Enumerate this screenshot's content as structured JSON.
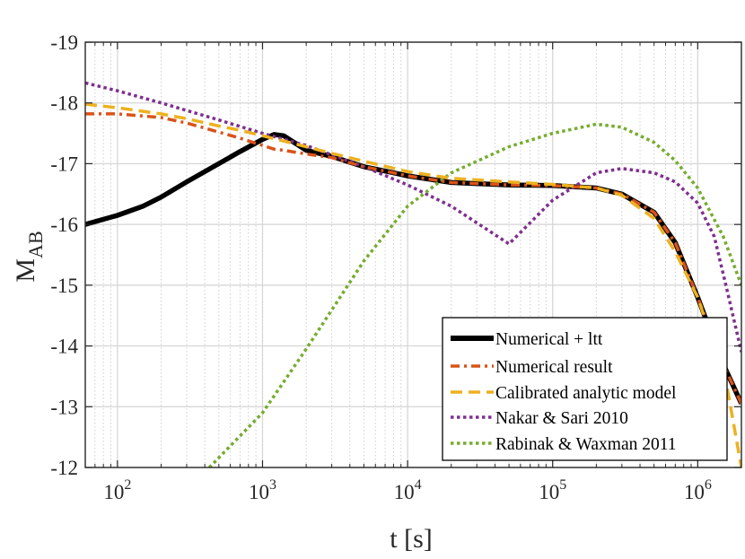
{
  "chart_data": {
    "type": "line",
    "title": "",
    "xlabel": "t [s]",
    "ylabel_main": "M",
    "ylabel_sub": "AB",
    "xscale": "log",
    "xlim": [
      60,
      2000000
    ],
    "ylim": [
      -12,
      -19
    ],
    "y_reversed": true,
    "grid": true,
    "legend_position": "bottom-right",
    "x_ticks": [
      {
        "base": "10",
        "exp": "2",
        "value": 100
      },
      {
        "base": "10",
        "exp": "3",
        "value": 1000
      },
      {
        "base": "10",
        "exp": "4",
        "value": 10000
      },
      {
        "base": "10",
        "exp": "5",
        "value": 100000
      },
      {
        "base": "10",
        "exp": "6",
        "value": 1000000
      }
    ],
    "y_ticks": [
      {
        "label": "-19",
        "value": -19
      },
      {
        "label": "-18",
        "value": -18
      },
      {
        "label": "-17",
        "value": -17
      },
      {
        "label": "-16",
        "value": -16
      },
      {
        "label": "-15",
        "value": -15
      },
      {
        "label": "-14",
        "value": -14
      },
      {
        "label": "-13",
        "value": -13
      },
      {
        "label": "-12",
        "value": -12
      }
    ],
    "series": [
      {
        "name": "Numerical + ltt",
        "color": "#000000",
        "style": "solid",
        "x": [
          60,
          100,
          150,
          200,
          300,
          500,
          700,
          1000,
          1200,
          1400,
          1700,
          2000,
          3000,
          5000,
          8000,
          10000,
          20000,
          50000,
          100000,
          200000,
          300000,
          500000,
          700000,
          1000000,
          1200000,
          1500000,
          2000000
        ],
        "y": [
          -16.0,
          -16.15,
          -16.3,
          -16.45,
          -16.7,
          -17.0,
          -17.2,
          -17.4,
          -17.48,
          -17.46,
          -17.33,
          -17.22,
          -17.12,
          -16.95,
          -16.85,
          -16.8,
          -16.69,
          -16.65,
          -16.64,
          -16.6,
          -16.5,
          -16.2,
          -15.7,
          -14.8,
          -14.3,
          -13.7,
          -13.05
        ]
      },
      {
        "name": "Numerical result",
        "color": "#D95319",
        "style": "dashdot",
        "x": [
          60,
          100,
          200,
          300,
          500,
          700,
          1000,
          1200,
          1400,
          2000,
          3000,
          5000,
          8000,
          10000,
          20000,
          50000,
          100000,
          200000,
          300000,
          500000,
          700000,
          1000000,
          1200000,
          1500000,
          2000000
        ],
        "y": [
          -17.82,
          -17.82,
          -17.76,
          -17.67,
          -17.52,
          -17.42,
          -17.3,
          -17.24,
          -17.22,
          -17.16,
          -17.1,
          -16.95,
          -16.85,
          -16.8,
          -16.69,
          -16.65,
          -16.64,
          -16.6,
          -16.5,
          -16.2,
          -15.7,
          -14.8,
          -14.3,
          -13.7,
          -13.05
        ]
      },
      {
        "name": "Calibrated analytic model",
        "color": "#EDB120",
        "style": "dashed",
        "x": [
          60,
          100,
          200,
          300,
          500,
          700,
          1000,
          2000,
          3000,
          5000,
          10000,
          20000,
          50000,
          100000,
          200000,
          300000,
          500000,
          700000,
          1000000,
          1300000,
          1600000,
          2000000
        ],
        "y": [
          -17.98,
          -17.92,
          -17.82,
          -17.74,
          -17.62,
          -17.55,
          -17.46,
          -17.28,
          -17.17,
          -17.04,
          -16.87,
          -16.76,
          -16.7,
          -16.66,
          -16.6,
          -16.48,
          -16.1,
          -15.55,
          -14.8,
          -14.0,
          -13.3,
          -12.0
        ]
      },
      {
        "name": "Nakar & Sari 2010",
        "color": "#7E2F8E",
        "style": "dotted",
        "x": [
          60,
          100,
          200,
          500,
          1000,
          2000,
          5000,
          10000,
          20000,
          50000,
          100000,
          200000,
          300000,
          500000,
          700000,
          1000000,
          1300000,
          1600000,
          2000000
        ],
        "y": [
          -18.33,
          -18.2,
          -18.0,
          -17.72,
          -17.5,
          -17.3,
          -16.95,
          -16.65,
          -16.3,
          -15.68,
          -16.4,
          -16.85,
          -16.92,
          -16.85,
          -16.7,
          -16.35,
          -15.8,
          -14.9,
          -13.9
        ]
      },
      {
        "name": "Rabinak & Waxman 2011",
        "color": "#77AC30",
        "style": "dotted",
        "x": [
          430,
          1000,
          2000,
          5000,
          10000,
          20000,
          50000,
          100000,
          200000,
          300000,
          500000,
          700000,
          1000000,
          1500000,
          2000000
        ],
        "y": [
          -12.0,
          -12.9,
          -13.95,
          -15.4,
          -16.3,
          -16.85,
          -17.28,
          -17.5,
          -17.65,
          -17.6,
          -17.35,
          -17.05,
          -16.6,
          -15.8,
          -15.0
        ]
      }
    ]
  }
}
